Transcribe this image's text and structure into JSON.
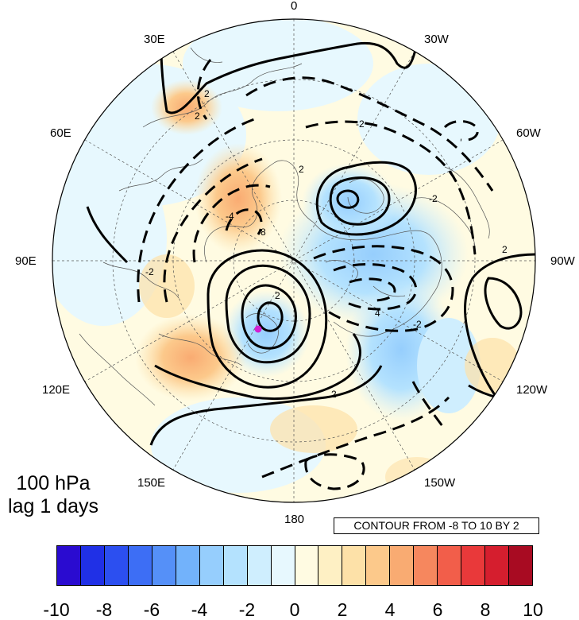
{
  "map": {
    "projection": "north polar stereographic",
    "longitude_labels": [
      "0",
      "30W",
      "60W",
      "90W",
      "120W",
      "150W",
      "180",
      "150E",
      "120E",
      "90E",
      "60E",
      "30E"
    ]
  },
  "panel_text": {
    "level": "100 hPa",
    "lag": "lag 1 days"
  },
  "contour_note": "CONTOUR FROM -8 TO 10 BY 2",
  "contour_labels": [
    "2",
    "2",
    "2",
    "-2",
    "-2",
    "-2",
    "-4",
    "-8",
    "2",
    "4",
    "2",
    "-2",
    "2"
  ],
  "colorbar": {
    "colors": [
      "#2a0bd0",
      "#2030e6",
      "#2c4ff0",
      "#3d6ef5",
      "#5590f8",
      "#72b2fb",
      "#96cefd",
      "#b4e2fe",
      "#cfeefe",
      "#e7f8fe",
      "#fffbe2",
      "#fef0c4",
      "#fde1a8",
      "#fcc98b",
      "#f9ab72",
      "#f6875e",
      "#f25e4a",
      "#e9393a",
      "#d51e2e",
      "#a80b22"
    ],
    "tick_labels": [
      "-10",
      "-8",
      "-6",
      "-4",
      "-2",
      "0",
      "2",
      "4",
      "6",
      "8",
      "10"
    ]
  }
}
